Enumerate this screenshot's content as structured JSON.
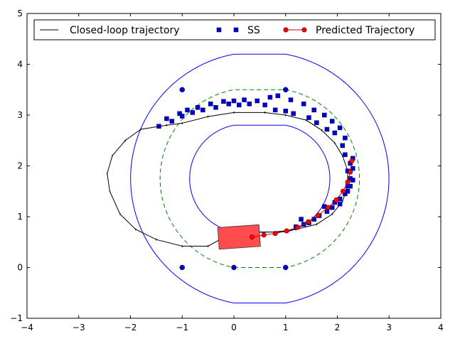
{
  "chart_data": {
    "type": "scatter",
    "title": "",
    "xlabel": "",
    "ylabel": "",
    "xlim": [
      -4,
      4
    ],
    "ylim": [
      -1,
      5
    ],
    "x_ticks": [
      -4,
      -3,
      -2,
      -1,
      0,
      1,
      2,
      3,
      4
    ],
    "y_ticks": [
      -1,
      0,
      1,
      2,
      3,
      4,
      5
    ],
    "x_tick_labels": [
      "−4",
      "−3",
      "−2",
      "−1",
      "0",
      "1",
      "2",
      "3",
      "4"
    ],
    "y_tick_labels": [
      "−1",
      "0",
      "1",
      "2",
      "3",
      "4",
      "5"
    ],
    "grid": false,
    "legend_position": "top",
    "legend": [
      {
        "label": "Closed-loop trajectory",
        "style": "line",
        "color": "#000000"
      },
      {
        "label": "SS",
        "style": "square",
        "color": "#0000cc"
      },
      {
        "label": "Predicted Trajectory",
        "style": "line-marker",
        "color": "#cc0000"
      }
    ],
    "track": {
      "straight_x": [
        0,
        1
      ],
      "center_radius": 1.75,
      "center_y": 1.75,
      "inner_radius": 1.05,
      "outer_radius": 2.45,
      "inner_color": "#0000ff",
      "outer_color": "#0000ff",
      "centerline_color": "#008000"
    },
    "track_nodes": [
      [
        -1,
        3.5
      ],
      [
        1,
        3.5
      ],
      [
        -1,
        0
      ],
      [
        0,
        0
      ],
      [
        1,
        0
      ]
    ],
    "closed_loop": [
      [
        0,
        0.7
      ],
      [
        -0.5,
        0.42
      ],
      [
        -1.0,
        0.42
      ],
      [
        -1.5,
        0.55
      ],
      [
        -1.9,
        0.75
      ],
      [
        -2.2,
        1.05
      ],
      [
        -2.4,
        1.5
      ],
      [
        -2.45,
        1.85
      ],
      [
        -2.35,
        2.2
      ],
      [
        -2.1,
        2.5
      ],
      [
        -1.8,
        2.72
      ],
      [
        -1.3,
        2.8
      ],
      [
        -1.0,
        2.84
      ],
      [
        -0.5,
        2.97
      ],
      [
        0,
        3.05
      ],
      [
        0.6,
        3.05
      ],
      [
        1.0,
        3.0
      ],
      [
        1.4,
        2.9
      ],
      [
        1.7,
        2.7
      ],
      [
        1.95,
        2.45
      ],
      [
        2.1,
        2.2
      ],
      [
        2.2,
        1.9
      ],
      [
        2.2,
        1.6
      ],
      [
        2.1,
        1.3
      ],
      [
        1.9,
        1.05
      ],
      [
        1.6,
        0.85
      ],
      [
        1.2,
        0.75
      ],
      [
        0.8,
        0.7
      ],
      [
        0.4,
        0.69
      ],
      [
        0,
        0.7
      ]
    ],
    "ss_points": [
      [
        -1.45,
        2.78
      ],
      [
        -1.3,
        2.93
      ],
      [
        -1.2,
        2.88
      ],
      [
        -1.05,
        3.03
      ],
      [
        -1.0,
        2.98
      ],
      [
        -0.9,
        3.1
      ],
      [
        -0.8,
        3.05
      ],
      [
        -0.7,
        3.15
      ],
      [
        -0.6,
        3.1
      ],
      [
        -0.45,
        3.22
      ],
      [
        -0.35,
        3.15
      ],
      [
        -0.2,
        3.27
      ],
      [
        -0.1,
        3.22
      ],
      [
        0.0,
        3.28
      ],
      [
        0.1,
        3.2
      ],
      [
        0.2,
        3.3
      ],
      [
        0.3,
        3.22
      ],
      [
        0.45,
        3.28
      ],
      [
        0.6,
        3.2
      ],
      [
        0.7,
        3.35
      ],
      [
        0.8,
        3.1
      ],
      [
        0.85,
        3.38
      ],
      [
        1.0,
        3.08
      ],
      [
        1.1,
        3.3
      ],
      [
        1.15,
        3.03
      ],
      [
        1.35,
        3.22
      ],
      [
        1.45,
        2.95
      ],
      [
        1.55,
        3.1
      ],
      [
        1.6,
        2.85
      ],
      [
        1.75,
        3.0
      ],
      [
        1.8,
        2.72
      ],
      [
        1.9,
        2.88
      ],
      [
        1.95,
        2.65
      ],
      [
        2.05,
        2.75
      ],
      [
        2.1,
        2.4
      ],
      [
        2.15,
        2.55
      ],
      [
        2.15,
        2.22
      ],
      [
        2.25,
        2.05
      ],
      [
        2.3,
        2.15
      ],
      [
        2.2,
        1.9
      ],
      [
        2.3,
        1.95
      ],
      [
        2.25,
        1.75
      ],
      [
        2.3,
        1.72
      ],
      [
        2.2,
        1.6
      ],
      [
        2.25,
        1.6
      ],
      [
        2.15,
        1.45
      ],
      [
        2.2,
        1.5
      ],
      [
        2.05,
        1.35
      ],
      [
        2.05,
        1.25
      ],
      [
        1.95,
        1.28
      ],
      [
        1.9,
        1.18
      ],
      [
        1.8,
        1.1
      ],
      [
        1.75,
        1.2
      ],
      [
        1.65,
        1.02
      ],
      [
        1.55,
        0.95
      ],
      [
        1.45,
        0.88
      ],
      [
        1.35,
        0.85
      ],
      [
        1.3,
        0.95
      ],
      [
        1.2,
        0.8
      ]
    ],
    "predicted_trajectory": [
      [
        0.35,
        0.6
      ],
      [
        0.58,
        0.64
      ],
      [
        0.8,
        0.67
      ],
      [
        1.02,
        0.72
      ],
      [
        1.23,
        0.79
      ],
      [
        1.44,
        0.9
      ],
      [
        1.63,
        1.03
      ],
      [
        1.82,
        1.18
      ],
      [
        1.98,
        1.33
      ],
      [
        2.11,
        1.5
      ],
      [
        2.2,
        1.68
      ],
      [
        2.25,
        1.88
      ],
      [
        2.28,
        2.1
      ]
    ],
    "vehicle": {
      "x": 0.1,
      "y": 0.6,
      "heading_deg": 4,
      "length": 0.8,
      "width": 0.42,
      "color": "#ff4c4c"
    }
  }
}
